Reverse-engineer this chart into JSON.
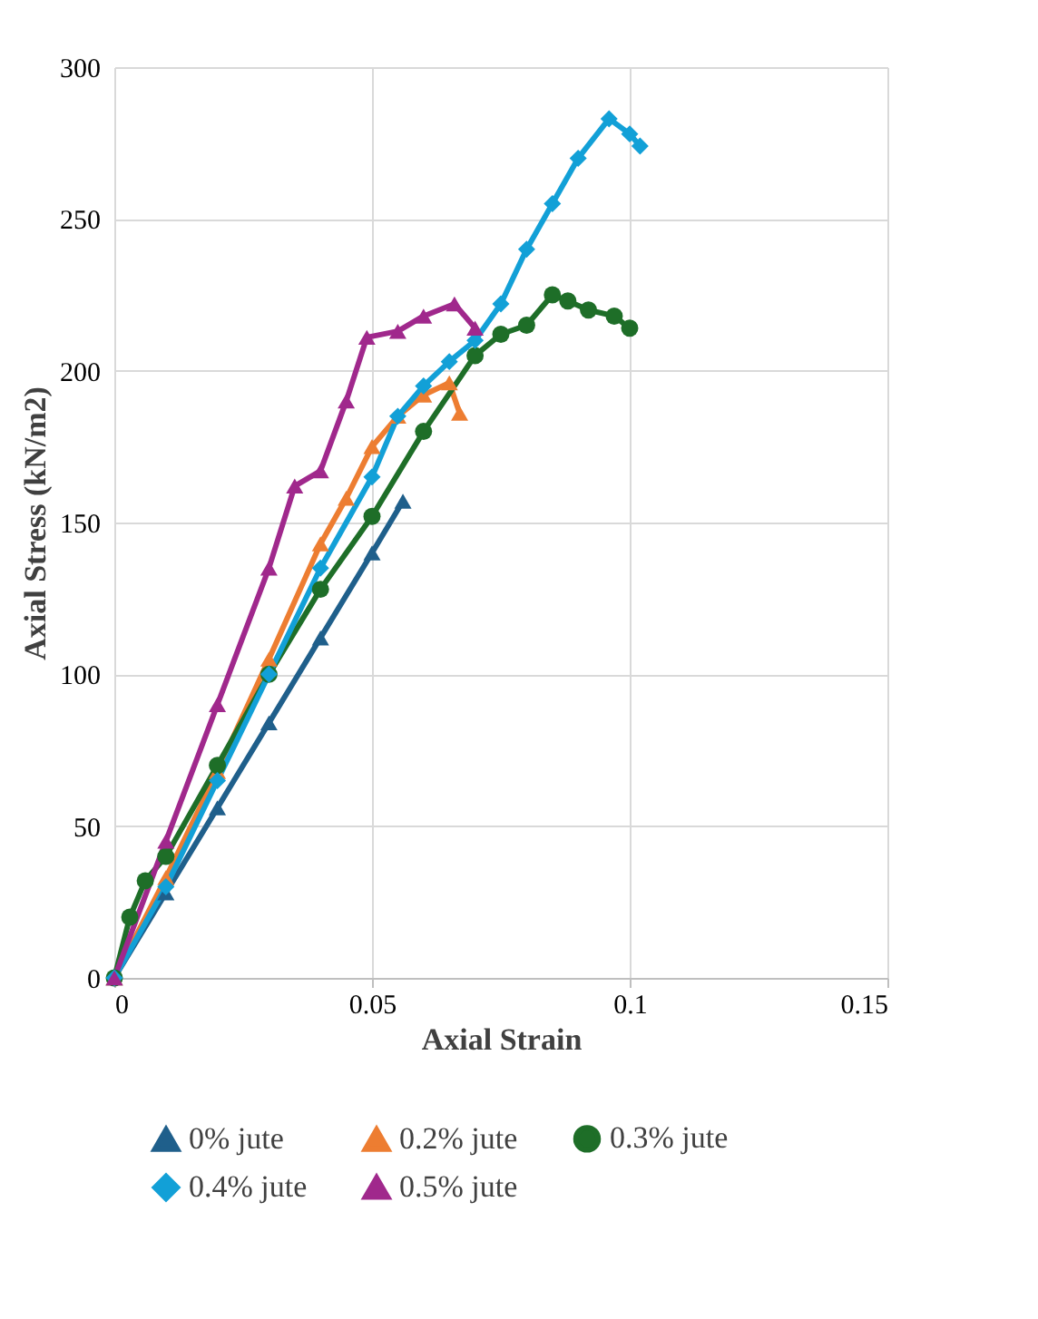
{
  "chart_data": {
    "type": "line",
    "xlabel": "Axial Strain",
    "ylabel": "Axial Stress (kN/m2)",
    "xlim": [
      0,
      0.15
    ],
    "ylim": [
      0,
      300
    ],
    "xticks": [
      0,
      0.05,
      0.1,
      0.15
    ],
    "yticks": [
      0,
      50,
      100,
      150,
      200,
      250,
      300
    ],
    "grid": true,
    "legend": "bottom",
    "line_style": "solid",
    "series": [
      {
        "name": "0% jute",
        "color": "#1f5f8b",
        "marker": "triangle",
        "x": [
          0,
          0.01,
          0.02,
          0.03,
          0.04,
          0.05,
          0.056
        ],
        "values": [
          0,
          28,
          56,
          84,
          112,
          140,
          157
        ]
      },
      {
        "name": "0.2% jute",
        "color": "#ed7d31",
        "marker": "triangle",
        "x": [
          0,
          0.01,
          0.02,
          0.03,
          0.04,
          0.045,
          0.05,
          0.055,
          0.06,
          0.065,
          0.067
        ],
        "values": [
          0,
          33,
          68,
          105,
          143,
          158,
          175,
          185,
          192,
          196,
          186
        ]
      },
      {
        "name": "0.3% jute",
        "color": "#1e6e28",
        "marker": "circle",
        "x": [
          0,
          0.003,
          0.006,
          0.01,
          0.02,
          0.03,
          0.04,
          0.05,
          0.06,
          0.07,
          0.075,
          0.08,
          0.085,
          0.088,
          0.092,
          0.097,
          0.1
        ],
        "values": [
          0,
          20,
          32,
          40,
          70,
          100,
          128,
          152,
          180,
          205,
          212,
          215,
          225,
          223,
          220,
          218,
          214
        ]
      },
      {
        "name": "0.4% jute",
        "color": "#12a0d7",
        "marker": "diamond",
        "x": [
          0,
          0.01,
          0.02,
          0.03,
          0.04,
          0.05,
          0.055,
          0.06,
          0.065,
          0.07,
          0.075,
          0.08,
          0.085,
          0.09,
          0.096,
          0.1,
          0.102
        ],
        "values": [
          0,
          30,
          65,
          100,
          135,
          165,
          185,
          195,
          203,
          210,
          222,
          240,
          255,
          270,
          283,
          278,
          274
        ]
      },
      {
        "name": "0.5% jute",
        "color": "#a0288c",
        "marker": "triangle",
        "x": [
          0,
          0.01,
          0.02,
          0.03,
          0.035,
          0.04,
          0.045,
          0.049,
          0.055,
          0.06,
          0.066,
          0.07
        ],
        "values": [
          0,
          45,
          90,
          135,
          162,
          167,
          190,
          211,
          213,
          218,
          222,
          214
        ]
      }
    ]
  }
}
